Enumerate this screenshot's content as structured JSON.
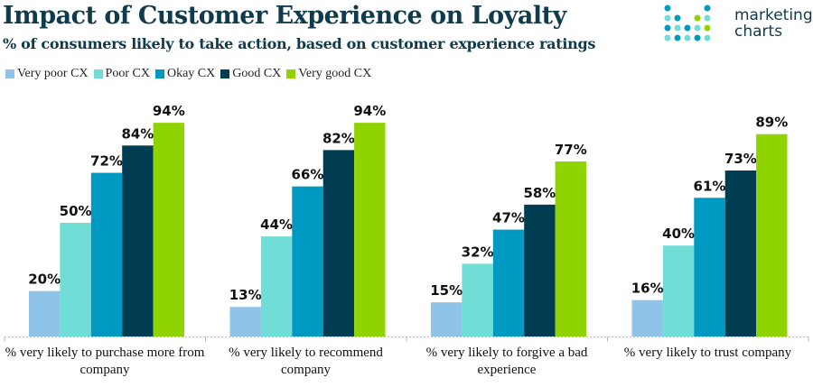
{
  "logo": {
    "line1": "marketing",
    "line2": "charts"
  },
  "chart_data": {
    "type": "bar",
    "title": "Impact of Customer Experience on Loyalty",
    "subtitle": "% of consumers likely to take action, based on customer experience ratings",
    "categories": [
      "% very likely to purchase more from company",
      "% very likely to recommend company",
      "% very likely to forgive a bad experience",
      "% very likely to trust company"
    ],
    "series": [
      {
        "name": "Very poor CX",
        "color": "#8fc3e8",
        "values": [
          20,
          13,
          15,
          16
        ]
      },
      {
        "name": "Poor CX",
        "color": "#70ddd6",
        "values": [
          50,
          44,
          32,
          40
        ]
      },
      {
        "name": "Okay CX",
        "color": "#0099c2",
        "values": [
          72,
          66,
          47,
          61
        ]
      },
      {
        "name": "Good CX",
        "color": "#003c52",
        "values": [
          84,
          82,
          58,
          73
        ]
      },
      {
        "name": "Very good CX",
        "color": "#8fd400",
        "values": [
          94,
          94,
          77,
          89
        ]
      }
    ],
    "value_suffix": "%",
    "ylim": [
      0,
      100
    ],
    "legend_position": "top-left",
    "grid": false
  }
}
